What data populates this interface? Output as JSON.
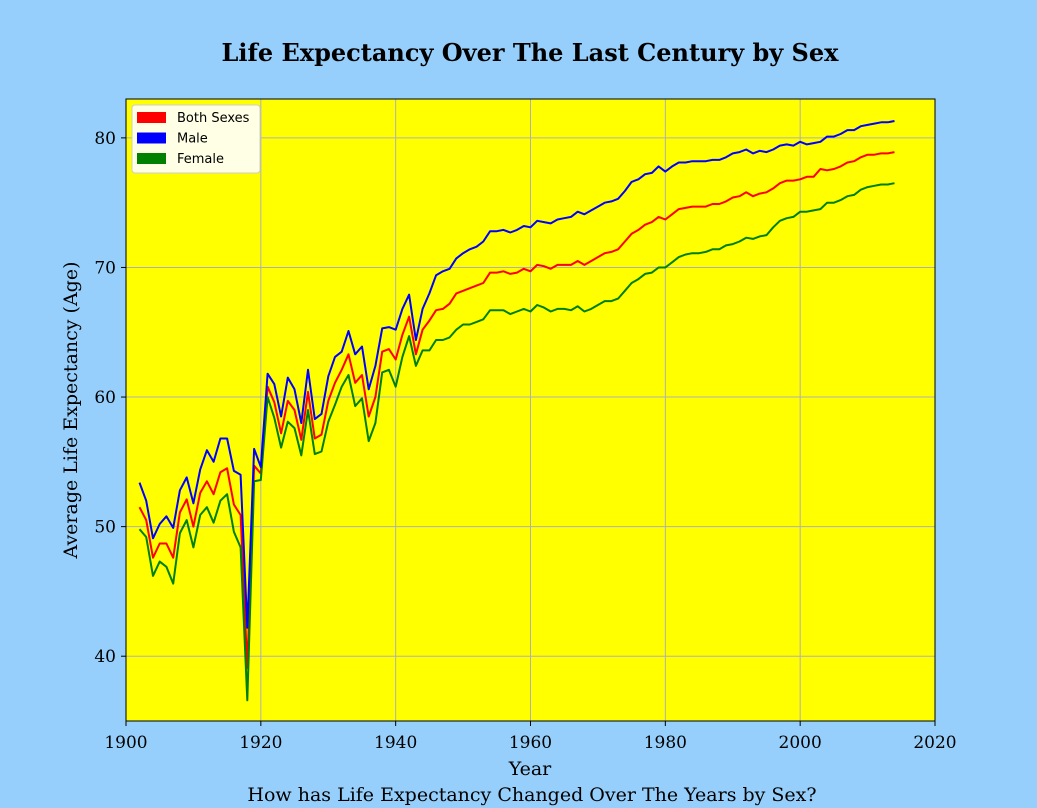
{
  "chart_data": {
    "type": "line",
    "title": "Life Expectancy Over The Last Century by Sex",
    "xlabel": "Year",
    "ylabel": "Average Life Expectancy (Age)",
    "caption": "How has Life Expectancy Changed Over The Years by Sex?",
    "xlim": [
      1900,
      2020
    ],
    "ylim": [
      35,
      83
    ],
    "xticks": [
      1900,
      1920,
      1940,
      1960,
      1980,
      2000,
      2020
    ],
    "yticks": [
      40,
      50,
      60,
      70,
      80
    ],
    "grid": true,
    "legend_position": "top-left",
    "background_color": "#ffff00",
    "figure_background": "#96cffb",
    "x": [
      1902,
      1903,
      1904,
      1905,
      1906,
      1907,
      1908,
      1909,
      1910,
      1911,
      1912,
      1913,
      1914,
      1915,
      1916,
      1917,
      1918,
      1919,
      1920,
      1921,
      1922,
      1923,
      1924,
      1925,
      1926,
      1927,
      1928,
      1929,
      1930,
      1931,
      1932,
      1933,
      1934,
      1935,
      1936,
      1937,
      1938,
      1939,
      1940,
      1941,
      1942,
      1943,
      1944,
      1945,
      1946,
      1947,
      1948,
      1949,
      1950,
      1951,
      1952,
      1953,
      1954,
      1955,
      1956,
      1957,
      1958,
      1959,
      1960,
      1961,
      1962,
      1963,
      1964,
      1965,
      1966,
      1967,
      1968,
      1969,
      1970,
      1971,
      1972,
      1973,
      1974,
      1975,
      1976,
      1977,
      1978,
      1979,
      1980,
      1981,
      1982,
      1983,
      1984,
      1985,
      1986,
      1987,
      1988,
      1989,
      1990,
      1991,
      1992,
      1993,
      1994,
      1995,
      1996,
      1997,
      1998,
      1999,
      2000,
      2001,
      2002,
      2003,
      2004,
      2005,
      2006,
      2007,
      2008,
      2009,
      2010,
      2011,
      2012,
      2013,
      2014
    ],
    "series": [
      {
        "name": "Both Sexes",
        "color": "#ff0000",
        "values": [
          51.5,
          50.5,
          47.6,
          48.7,
          48.7,
          47.6,
          51.1,
          52.1,
          50.0,
          52.6,
          53.5,
          52.5,
          54.2,
          54.5,
          51.7,
          50.9,
          39.1,
          54.7,
          54.1,
          60.8,
          59.6,
          57.2,
          59.7,
          59.0,
          56.7,
          60.4,
          56.8,
          57.1,
          59.7,
          61.1,
          62.1,
          63.3,
          61.1,
          61.7,
          58.5,
          60.0,
          63.5,
          63.7,
          62.9,
          64.8,
          66.2,
          63.3,
          65.2,
          65.9,
          66.7,
          66.8,
          67.2,
          68.0,
          68.2,
          68.4,
          68.6,
          68.8,
          69.6,
          69.6,
          69.7,
          69.5,
          69.6,
          69.9,
          69.7,
          70.2,
          70.1,
          69.9,
          70.2,
          70.2,
          70.2,
          70.5,
          70.2,
          70.5,
          70.8,
          71.1,
          71.2,
          71.4,
          72.0,
          72.6,
          72.9,
          73.3,
          73.5,
          73.9,
          73.7,
          74.1,
          74.5,
          74.6,
          74.7,
          74.7,
          74.7,
          74.9,
          74.9,
          75.1,
          75.4,
          75.5,
          75.8,
          75.5,
          75.7,
          75.8,
          76.1,
          76.5,
          76.7,
          76.7,
          76.8,
          77.0,
          77.0,
          77.6,
          77.5,
          77.6,
          77.8,
          78.1,
          78.2,
          78.5,
          78.7,
          78.7,
          78.8,
          78.8,
          78.9
        ]
      },
      {
        "name": "Male",
        "color": "#0000ff",
        "values": [
          53.4,
          52.0,
          49.1,
          50.2,
          50.8,
          49.9,
          52.8,
          53.8,
          51.8,
          54.4,
          55.9,
          55.0,
          56.8,
          56.8,
          54.3,
          54.0,
          42.2,
          56.0,
          54.6,
          61.8,
          61.0,
          58.5,
          61.5,
          60.6,
          58.0,
          62.1,
          58.3,
          58.7,
          61.6,
          63.1,
          63.5,
          65.1,
          63.3,
          63.9,
          60.6,
          62.4,
          65.3,
          65.4,
          65.2,
          66.8,
          67.9,
          64.4,
          66.8,
          68.0,
          69.4,
          69.7,
          69.9,
          70.7,
          71.1,
          71.4,
          71.6,
          72.0,
          72.8,
          72.8,
          72.9,
          72.7,
          72.9,
          73.2,
          73.1,
          73.6,
          73.5,
          73.4,
          73.7,
          73.8,
          73.9,
          74.3,
          74.1,
          74.4,
          74.7,
          75.0,
          75.1,
          75.3,
          75.9,
          76.6,
          76.8,
          77.2,
          77.3,
          77.8,
          77.4,
          77.8,
          78.1,
          78.1,
          78.2,
          78.2,
          78.2,
          78.3,
          78.3,
          78.5,
          78.8,
          78.9,
          79.1,
          78.8,
          79.0,
          78.9,
          79.1,
          79.4,
          79.5,
          79.4,
          79.7,
          79.5,
          79.6,
          79.7,
          80.1,
          80.1,
          80.3,
          80.6,
          80.6,
          80.9,
          81.0,
          81.1,
          81.2,
          81.2,
          81.3
        ]
      },
      {
        "name": "Female",
        "color": "#008000",
        "values": [
          49.8,
          49.2,
          46.2,
          47.3,
          46.9,
          45.6,
          49.5,
          50.5,
          48.4,
          50.9,
          51.5,
          50.3,
          52.0,
          52.5,
          49.6,
          48.4,
          36.6,
          53.5,
          53.6,
          60.0,
          58.4,
          56.1,
          58.1,
          57.6,
          55.5,
          59.0,
          55.6,
          55.8,
          58.1,
          59.4,
          60.8,
          61.7,
          59.3,
          59.9,
          56.6,
          58.0,
          61.9,
          62.1,
          60.8,
          63.1,
          64.7,
          62.4,
          63.6,
          63.6,
          64.4,
          64.4,
          64.6,
          65.2,
          65.6,
          65.6,
          65.8,
          66.0,
          66.7,
          66.7,
          66.7,
          66.4,
          66.6,
          66.8,
          66.6,
          67.1,
          66.9,
          66.6,
          66.8,
          66.8,
          66.7,
          67.0,
          66.6,
          66.8,
          67.1,
          67.4,
          67.4,
          67.6,
          68.2,
          68.8,
          69.1,
          69.5,
          69.6,
          70.0,
          70.0,
          70.4,
          70.8,
          71.0,
          71.1,
          71.1,
          71.2,
          71.4,
          71.4,
          71.7,
          71.8,
          72.0,
          72.3,
          72.2,
          72.4,
          72.5,
          73.1,
          73.6,
          73.8,
          73.9,
          74.3,
          74.3,
          74.4,
          74.5,
          75.0,
          75.0,
          75.2,
          75.5,
          75.6,
          76.0,
          76.2,
          76.3,
          76.4,
          76.4,
          76.5
        ]
      }
    ]
  }
}
